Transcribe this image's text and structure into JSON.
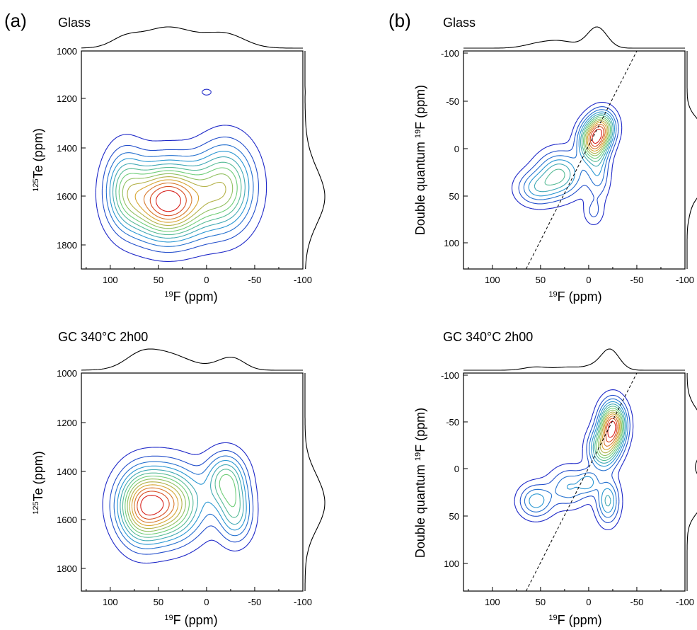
{
  "panels": [
    {
      "id": "a",
      "panel_label": "(a)",
      "sections": [
        {
          "title": "Glass",
          "ylabel_sup": "125",
          "ylabel_main": "Te (ppm)",
          "xlabel_sup": "19",
          "xlabel_main": "F (ppm)",
          "xticks": [
            "100",
            "50",
            "0",
            "-50",
            "-100"
          ],
          "yticks": [
            "1000",
            "1200",
            "1400",
            "1600",
            "1800"
          ]
        },
        {
          "title": "GC 340°C 2h00",
          "ylabel_sup": "125",
          "ylabel_main": "Te (ppm)",
          "xlabel_sup": "19",
          "xlabel_main": "F (ppm)",
          "xticks": [
            "100",
            "50",
            "0",
            "-50",
            "-100"
          ],
          "yticks": [
            "1000",
            "1200",
            "1400",
            "1600",
            "1800"
          ]
        }
      ]
    },
    {
      "id": "b",
      "panel_label": "(b)",
      "sections": [
        {
          "title": "Glass",
          "ylabel_main": "Double quantum ",
          "ylabel_sup": "19",
          "ylabel_tail": "F (ppm)",
          "xlabel_sup": "19",
          "xlabel_main": "F (ppm)",
          "xticks": [
            "100",
            "50",
            "0",
            "-50",
            "-100"
          ],
          "yticks": [
            "-100",
            "-50",
            "0",
            "50",
            "100"
          ]
        },
        {
          "title": "GC 340°C 2h00",
          "ylabel_main": "Double quantum ",
          "ylabel_sup": "19",
          "ylabel_tail": "F (ppm)",
          "xlabel_sup": "19",
          "xlabel_main": "F (ppm)",
          "xticks": [
            "100",
            "50",
            "0",
            "-50",
            "-100"
          ],
          "yticks": [
            "-100",
            "-50",
            "0",
            "50",
            "100"
          ]
        }
      ]
    }
  ],
  "chart_data": [
    {
      "type": "heatmap",
      "subtype": "2D NMR contour (HMQC 19F-125Te)",
      "panel": "(a)",
      "title": "Glass",
      "x_axis": {
        "nucleus": "19F",
        "unit": "ppm",
        "range": [
          130,
          -100
        ],
        "reversed": true
      },
      "y_axis": {
        "nucleus": "125Te",
        "unit": "ppm",
        "range": [
          1000,
          1900
        ]
      },
      "peaks": [
        {
          "x": 40,
          "y": 1620,
          "intensity": 1.0,
          "sx": 28,
          "sy": 105
        },
        {
          "x": -20,
          "y": 1560,
          "intensity": 0.55,
          "sx": 20,
          "sy": 120
        },
        {
          "x": 85,
          "y": 1560,
          "intensity": 0.35,
          "sx": 14,
          "sy": 110
        },
        {
          "x": 0,
          "y": 1170,
          "intensity": 0.12,
          "sx": 4,
          "sy": 10
        }
      ],
      "contour_levels": 13,
      "colormap": "jet (blue low → red high)",
      "top_projection": "broad, max near 40 ppm",
      "right_projection": "broad, max near 1620 ppm"
    },
    {
      "type": "heatmap",
      "subtype": "2D NMR contour (HMQC 19F-125Te)",
      "panel": "(a)",
      "title": "GC 340°C 2h00",
      "x_axis": {
        "nucleus": "19F",
        "unit": "ppm",
        "range": [
          130,
          -100
        ],
        "reversed": true
      },
      "y_axis": {
        "nucleus": "125Te",
        "unit": "ppm",
        "range": [
          1000,
          1900
        ]
      },
      "peaks": [
        {
          "x": 45,
          "y": 1540,
          "intensity": 1.0,
          "sx": 26,
          "sy": 100
        },
        {
          "x": -20,
          "y": 1440,
          "intensity": 0.55,
          "sx": 14,
          "sy": 75
        },
        {
          "x": -30,
          "y": 1580,
          "intensity": 0.45,
          "sx": 12,
          "sy": 80
        },
        {
          "x": 70,
          "y": 1560,
          "intensity": 0.45,
          "sx": 15,
          "sy": 100
        }
      ],
      "contour_levels": 13,
      "colormap": "jet (blue low → red high)",
      "top_projection": "max near 45 ppm, shoulder near -20 ppm",
      "right_projection": "max near 1550 ppm"
    },
    {
      "type": "heatmap",
      "subtype": "2D NMR contour (19F DQ-SQ)",
      "panel": "(b)",
      "title": "Glass",
      "x_axis": {
        "nucleus": "19F",
        "unit": "ppm",
        "range": [
          130,
          -100
        ],
        "reversed": true
      },
      "y_axis": {
        "label": "Double quantum 19F",
        "unit": "ppm",
        "range": [
          -100,
          130
        ]
      },
      "diagonal": {
        "points": [
          [
            65,
            130
          ],
          [
            -50,
            -100
          ]
        ]
      },
      "peaks": [
        {
          "x": -5,
          "y": -5,
          "intensity": 1.0,
          "sx": 10,
          "sy": 14
        },
        {
          "x": -15,
          "y": -20,
          "intensity": 0.7,
          "sx": 9,
          "sy": 12
        },
        {
          "x": 30,
          "y": 30,
          "intensity": 0.55,
          "sx": 16,
          "sy": 16
        },
        {
          "x": 55,
          "y": 45,
          "intensity": 0.35,
          "sx": 14,
          "sy": 12
        },
        {
          "x": -10,
          "y": 30,
          "intensity": 0.3,
          "sx": 8,
          "sy": 18
        },
        {
          "x": -5,
          "y": 70,
          "intensity": 0.18,
          "sx": 7,
          "sy": 10
        }
      ],
      "contour_levels": 13,
      "colormap": "jet (blue low → red high)",
      "top_projection": "max near -5 ppm"
    },
    {
      "type": "heatmap",
      "subtype": "2D NMR contour (19F DQ-SQ)",
      "panel": "(b)",
      "title": "GC 340°C 2h00",
      "x_axis": {
        "nucleus": "19F",
        "unit": "ppm",
        "range": [
          130,
          -100
        ],
        "reversed": true
      },
      "y_axis": {
        "label": "Double quantum 19F",
        "unit": "ppm",
        "range": [
          -100,
          130
        ]
      },
      "diagonal": {
        "points": [
          [
            65,
            130
          ],
          [
            -50,
            -100
          ]
        ]
      },
      "peaks": [
        {
          "x": -25,
          "y": -45,
          "intensity": 1.0,
          "sx": 9,
          "sy": 16
        },
        {
          "x": -15,
          "y": -20,
          "intensity": 0.6,
          "sx": 10,
          "sy": 14
        },
        {
          "x": -20,
          "y": 35,
          "intensity": 0.4,
          "sx": 8,
          "sy": 16
        },
        {
          "x": 55,
          "y": 35,
          "intensity": 0.35,
          "sx": 12,
          "sy": 12
        },
        {
          "x": 20,
          "y": 20,
          "intensity": 0.3,
          "sx": 14,
          "sy": 14
        },
        {
          "x": 0,
          "y": 15,
          "intensity": 0.25,
          "sx": 7,
          "sy": 8
        }
      ],
      "contour_levels": 13,
      "colormap": "jet (blue low → red high)",
      "top_projection": "max near -25 ppm"
    }
  ]
}
